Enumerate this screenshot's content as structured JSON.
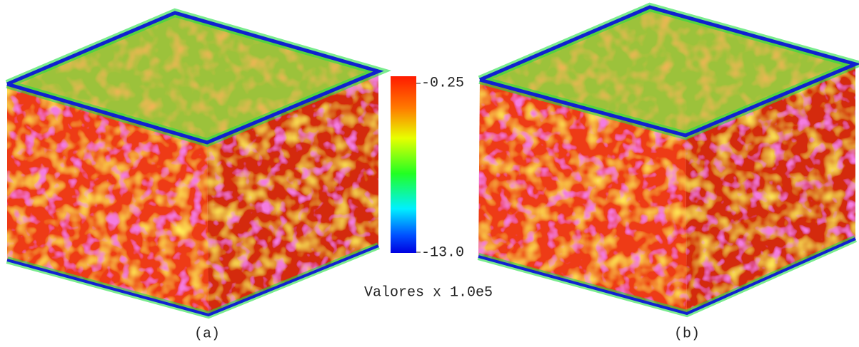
{
  "colorbar": {
    "max_label": "-0.25",
    "min_label": "-13.0",
    "caption": "Valores x 1.0e5"
  },
  "panels": [
    {
      "label": "(a)"
    },
    {
      "label": "(b)"
    }
  ]
}
